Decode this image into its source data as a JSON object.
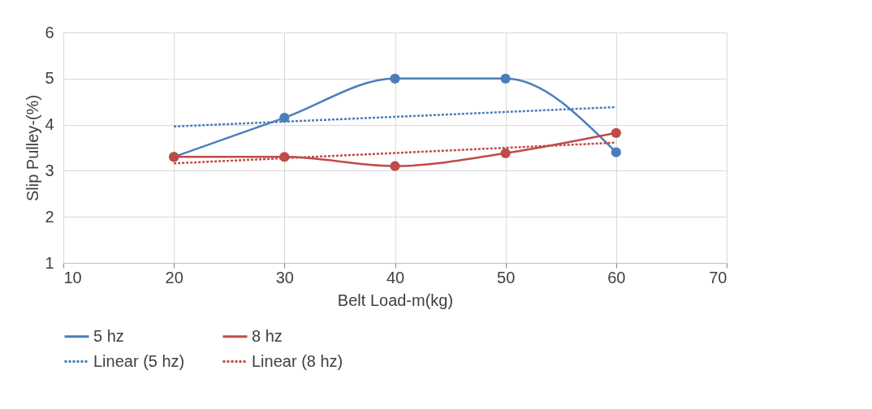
{
  "chart_data": {
    "type": "line",
    "xlabel": "Belt Load-m(kg)",
    "ylabel": "Slip Pulley-(%)",
    "xlim": [
      10,
      70
    ],
    "xticks": [
      10,
      20,
      30,
      40,
      50,
      60,
      70
    ],
    "ylim": [
      1,
      6
    ],
    "yticks": [
      1,
      2,
      3,
      4,
      5,
      6
    ],
    "grid": true,
    "legend": "bottom",
    "series": [
      {
        "name": "5 hz",
        "color": "#4a7ebb",
        "x": [
          20,
          30,
          40,
          50,
          60
        ],
        "values": [
          3.3,
          4.15,
          5.0,
          5.0,
          3.4
        ],
        "marker": "circle",
        "line_style": "solid"
      },
      {
        "name": "8 hz",
        "color": "#be4b48",
        "x": [
          20,
          30,
          40,
          50,
          60
        ],
        "values": [
          3.3,
          3.3,
          3.1,
          3.38,
          3.82
        ],
        "marker": "circle",
        "line_style": "solid"
      },
      {
        "name": "Linear (5 hz)",
        "color": "#4a7ebb",
        "x": [
          20,
          60
        ],
        "values": [
          3.96,
          4.38
        ],
        "marker": "none",
        "line_style": "dotted"
      },
      {
        "name": "Linear (8 hz)",
        "color": "#be4b48",
        "x": [
          20,
          60
        ],
        "values": [
          3.16,
          3.61
        ],
        "marker": "none",
        "line_style": "dotted"
      }
    ]
  }
}
